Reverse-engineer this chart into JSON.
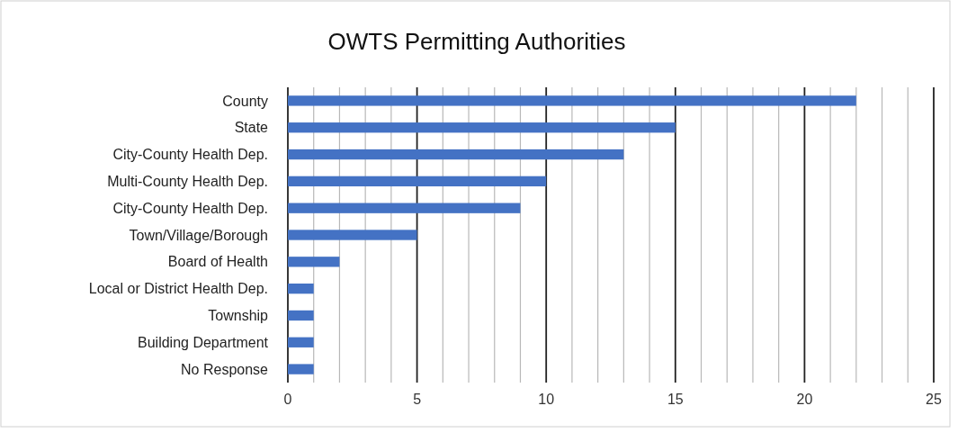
{
  "chart_data": {
    "type": "bar",
    "orientation": "horizontal",
    "title": "OWTS Permitting Authorities",
    "categories": [
      "County",
      "State",
      "City-County Health Dep.",
      "Multi-County Health Dep.",
      "City-County Health Dep.",
      "Town/Village/Borough",
      "Board of Health",
      "Local or District Health Dep.",
      "Township",
      "Building Department",
      "No Response"
    ],
    "values": [
      22,
      15,
      13,
      10,
      9,
      5,
      2,
      1,
      1,
      1,
      1
    ],
    "color": "#4472c4",
    "xlim": [
      0,
      25
    ],
    "xticks": [
      0,
      {
        "value": 1,
        "label": null
      },
      {
        "value": 2,
        "label": null
      },
      {
        "value": 3,
        "label": null
      },
      {
        "value": 4,
        "label": null
      },
      5,
      {
        "value": 6,
        "label": null
      },
      {
        "value": 7,
        "label": null
      },
      {
        "value": 8,
        "label": null
      },
      {
        "value": 9,
        "label": null
      },
      10,
      {
        "value": 11,
        "label": null
      },
      {
        "value": 12,
        "label": null
      },
      {
        "value": 13,
        "label": null
      },
      {
        "value": 14,
        "label": null
      },
      15,
      {
        "value": 16,
        "label": null
      },
      {
        "value": 17,
        "label": null
      },
      {
        "value": 18,
        "label": null
      },
      {
        "value": 19,
        "label": null
      },
      20,
      {
        "value": 21,
        "label": null
      },
      {
        "value": 22,
        "label": null
      },
      {
        "value": 23,
        "label": null
      },
      {
        "value": 24,
        "label": null
      },
      25
    ],
    "grid": "x"
  }
}
